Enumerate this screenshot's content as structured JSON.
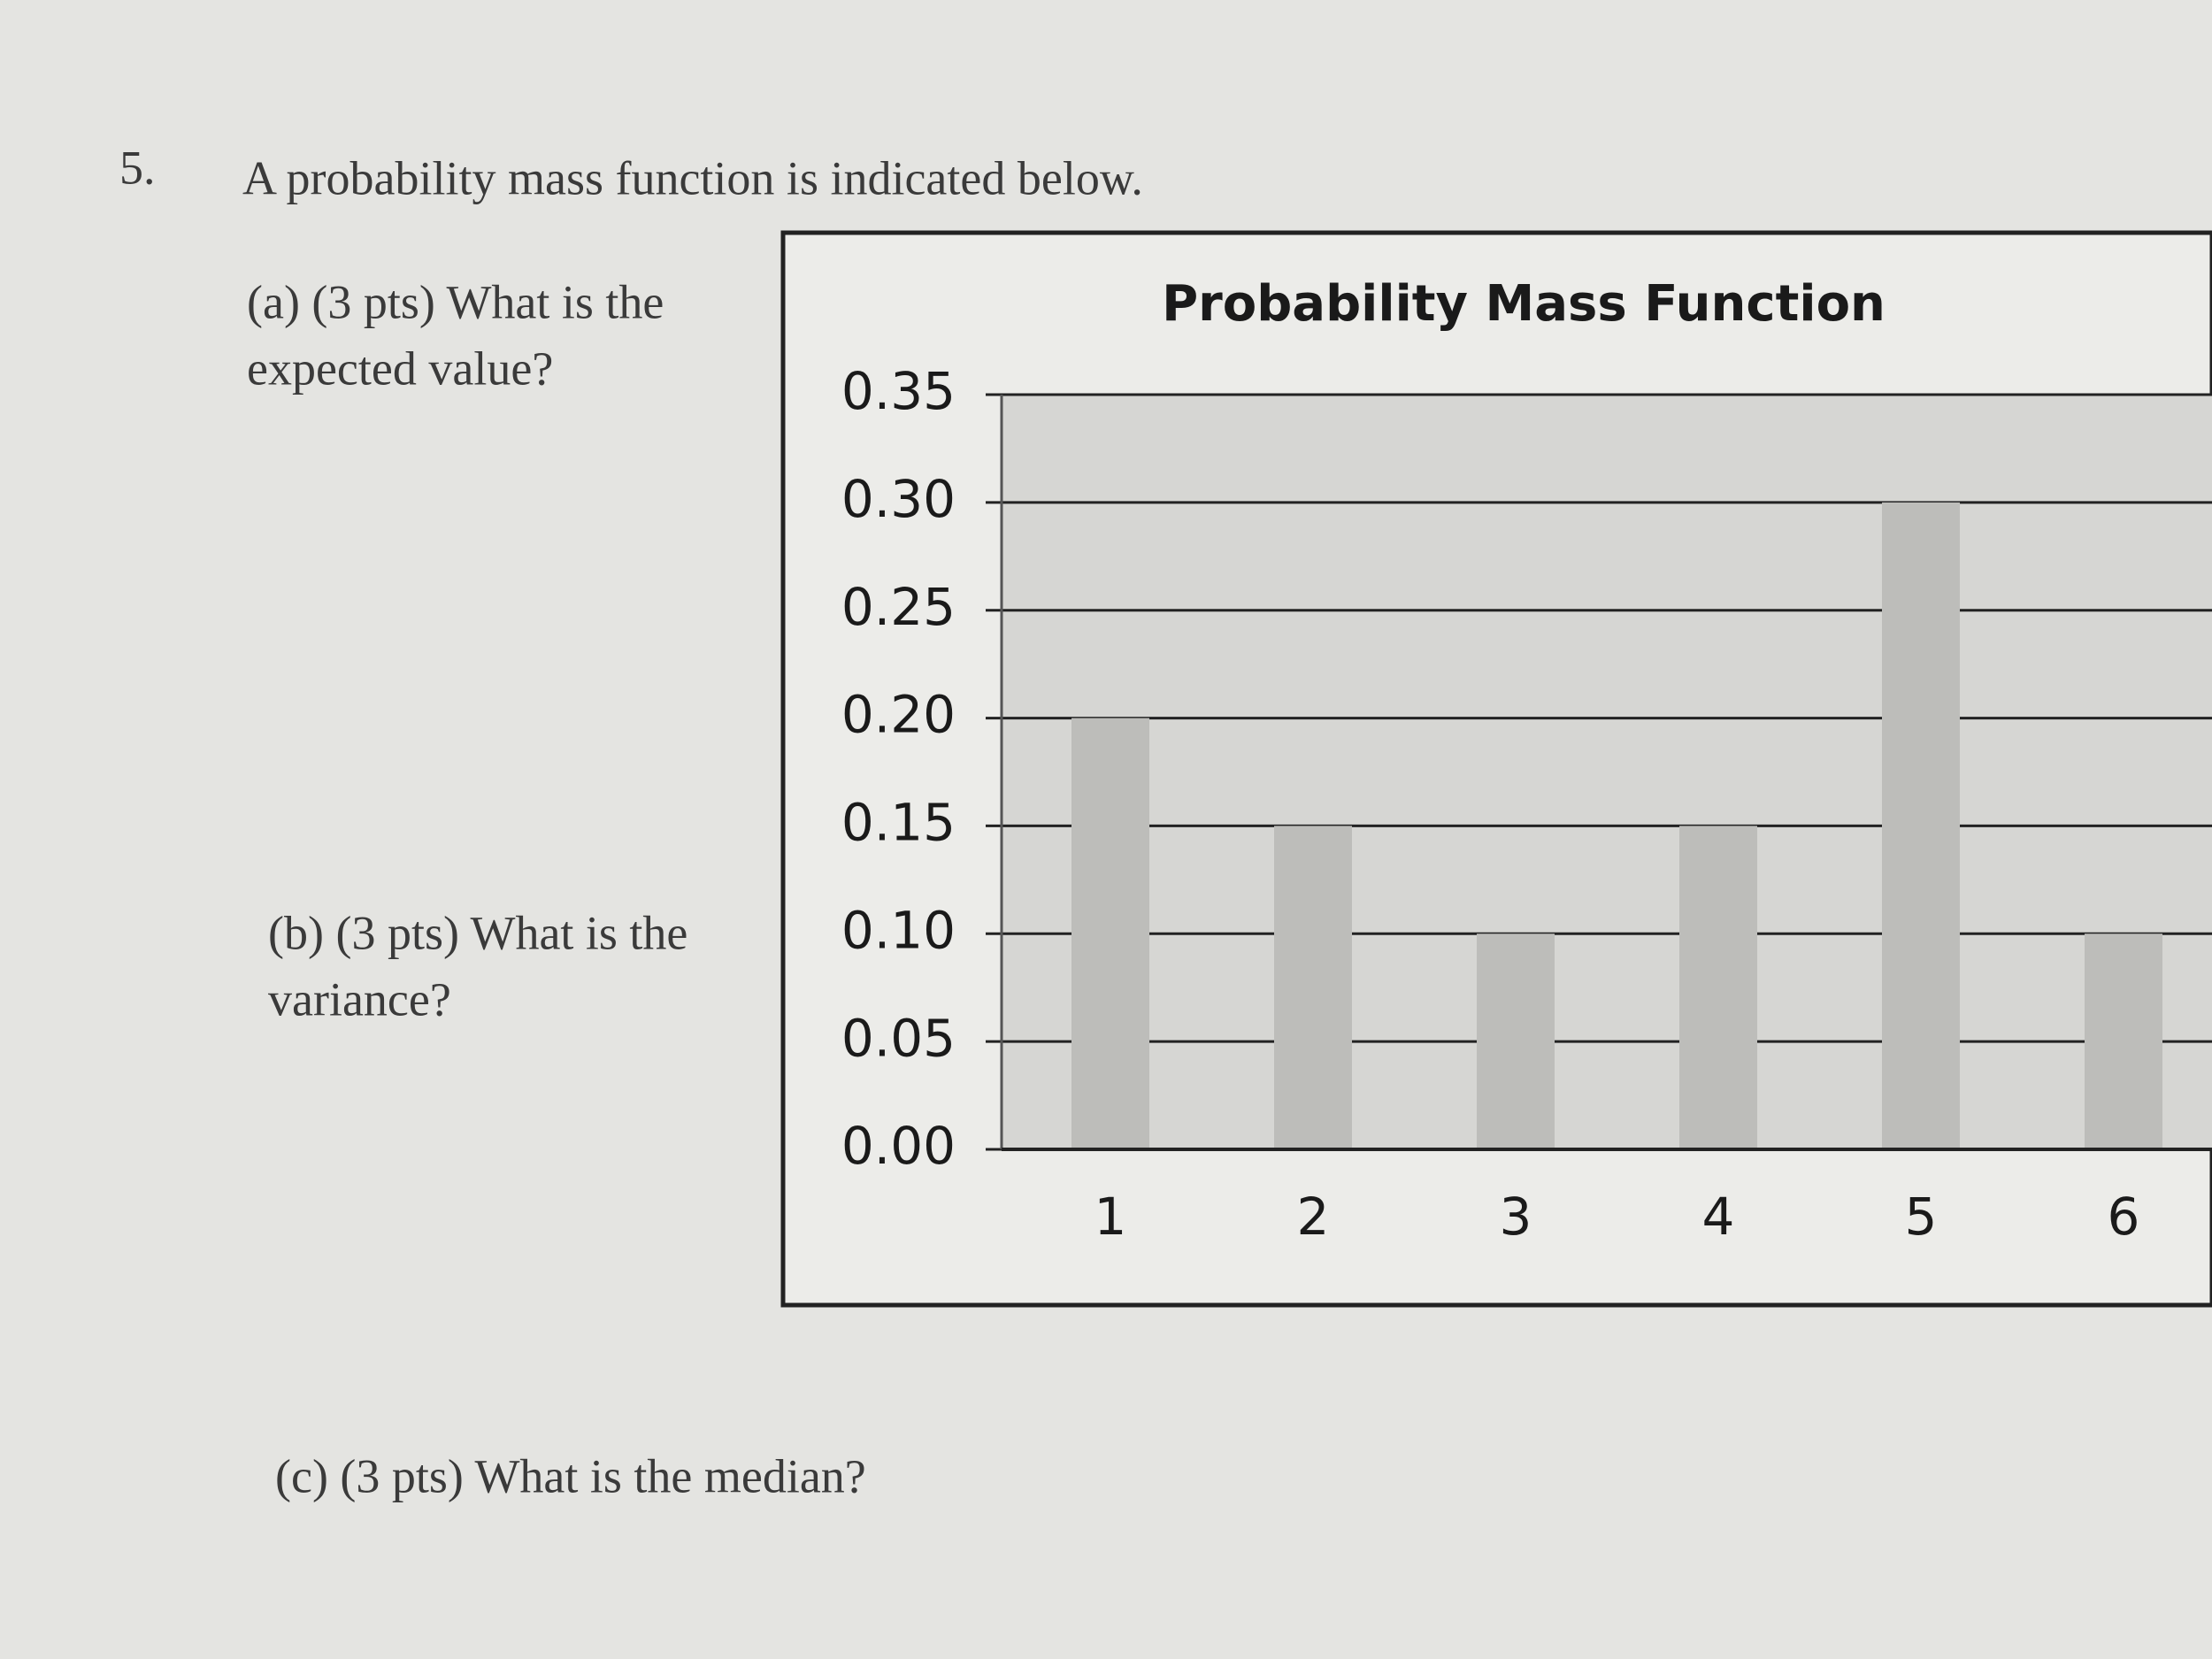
{
  "question": {
    "number": "5.",
    "text": "A probability mass function is indicated below.",
    "parts": [
      {
        "lines": [
          "(a) (3 pts) What is the",
          "expected value?"
        ]
      },
      {
        "lines": [
          "(b) (3 pts) What is the",
          "variance?"
        ]
      },
      {
        "lines": [
          "(c) (3 pts) What is the median?"
        ]
      }
    ]
  },
  "chart_data": {
    "type": "bar",
    "title": "Probability Mass Function",
    "categories": [
      "1",
      "2",
      "3",
      "4",
      "5",
      "6"
    ],
    "values": [
      0.2,
      0.15,
      0.1,
      0.15,
      0.3,
      0.1
    ],
    "color": "#bdbdba",
    "ylim": [
      0,
      0.35
    ],
    "yticks": [
      {
        "value": 0,
        "label": "0.00"
      },
      0.05,
      {
        "value": 0.1,
        "label": "0.10"
      },
      0.15,
      {
        "value": 0.2,
        "label": "0.20"
      },
      0.25,
      {
        "value": 0.3,
        "label": "0.30"
      },
      0.35
    ],
    "grid": true
  }
}
